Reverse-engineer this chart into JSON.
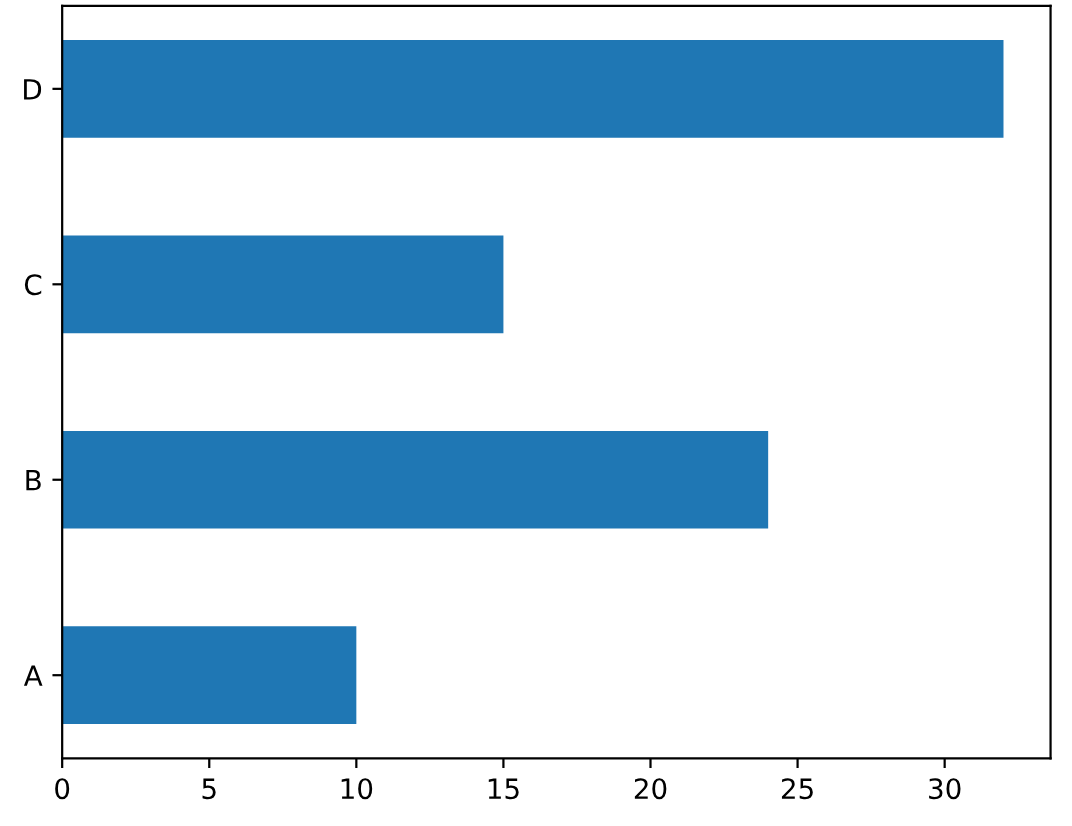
{
  "chart_data": {
    "type": "bar",
    "orientation": "horizontal",
    "categories": [
      "D",
      "C",
      "B",
      "A"
    ],
    "values": [
      32,
      15,
      24,
      10
    ],
    "color": "#1f77b4",
    "xlim": [
      0,
      33.6
    ],
    "xticks": [
      0,
      5,
      10,
      15,
      20,
      25,
      30
    ],
    "grid": false,
    "legend": false
  }
}
